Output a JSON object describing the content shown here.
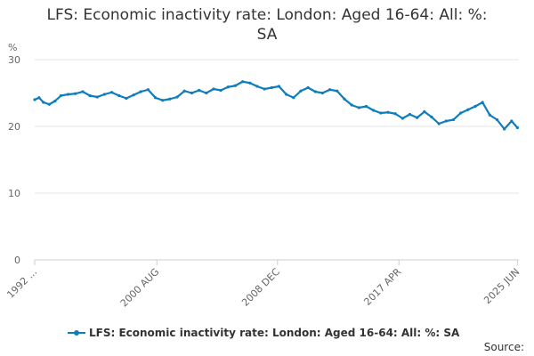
{
  "chart_data": {
    "type": "line",
    "title_line1": "LFS: Economic inactivity rate: London: Aged 16-64: All: %:",
    "title_line2": "SA",
    "ylabel": "%",
    "ylim": [
      0,
      30
    ],
    "yticks": [
      "0",
      "10",
      "20",
      "30"
    ],
    "xlabel": "",
    "xlim": [
      1992.2,
      2025.5
    ],
    "xtick_labels": [
      {
        "label": "1992 ...",
        "x": 1992.2
      },
      {
        "label": "2000 AUG",
        "x": 2000.6
      },
      {
        "label": "2008 DEC",
        "x": 2008.9
      },
      {
        "label": "2017 APR",
        "x": 2017.25
      },
      {
        "label": "2025 JUN",
        "x": 2025.4
      }
    ],
    "grid": "horizontal",
    "legend_position": "bottom",
    "series": [
      {
        "name": "LFS: Economic inactivity rate: London: Aged 16-64: All: %: SA",
        "color": "#0e7dbc",
        "x": [
          1992.2,
          1992.5,
          1992.8,
          1993.2,
          1993.6,
          1994.0,
          1994.5,
          1995.0,
          1995.5,
          1996.0,
          1996.5,
          1997.0,
          1997.5,
          1998.0,
          1998.5,
          1999.0,
          1999.5,
          2000.0,
          2000.5,
          2001.0,
          2001.5,
          2002.0,
          2002.5,
          2003.0,
          2003.5,
          2004.0,
          2004.5,
          2005.0,
          2005.5,
          2006.0,
          2006.5,
          2007.0,
          2007.5,
          2008.0,
          2008.5,
          2009.0,
          2009.5,
          2010.0,
          2010.5,
          2011.0,
          2011.5,
          2012.0,
          2012.5,
          2013.0,
          2013.5,
          2014.0,
          2014.5,
          2015.0,
          2015.5,
          2016.0,
          2016.5,
          2017.0,
          2017.5,
          2018.0,
          2018.5,
          2019.0,
          2019.5,
          2020.0,
          2020.5,
          2021.0,
          2021.5,
          2022.0,
          2022.5,
          2023.0,
          2023.5,
          2024.0,
          2024.5,
          2025.0,
          2025.4
        ],
        "values": [
          24.0,
          24.3,
          23.6,
          23.3,
          23.8,
          24.6,
          24.8,
          24.9,
          25.2,
          24.6,
          24.4,
          24.8,
          25.1,
          24.6,
          24.2,
          24.7,
          25.2,
          25.5,
          24.3,
          23.9,
          24.1,
          24.4,
          25.3,
          25.0,
          25.4,
          25.0,
          25.6,
          25.4,
          25.9,
          26.1,
          26.7,
          26.5,
          26.0,
          25.6,
          25.8,
          26.0,
          24.8,
          24.3,
          25.3,
          25.8,
          25.2,
          25.0,
          25.5,
          25.3,
          24.1,
          23.2,
          22.8,
          23.0,
          22.4,
          22.0,
          22.1,
          21.9,
          21.2,
          21.8,
          21.3,
          22.2,
          21.4,
          20.4,
          20.8,
          21.0,
          22.0,
          22.5,
          23.0,
          23.6,
          21.7,
          21.0,
          19.6,
          20.8,
          19.8
        ]
      }
    ],
    "source_label": "Source:"
  }
}
